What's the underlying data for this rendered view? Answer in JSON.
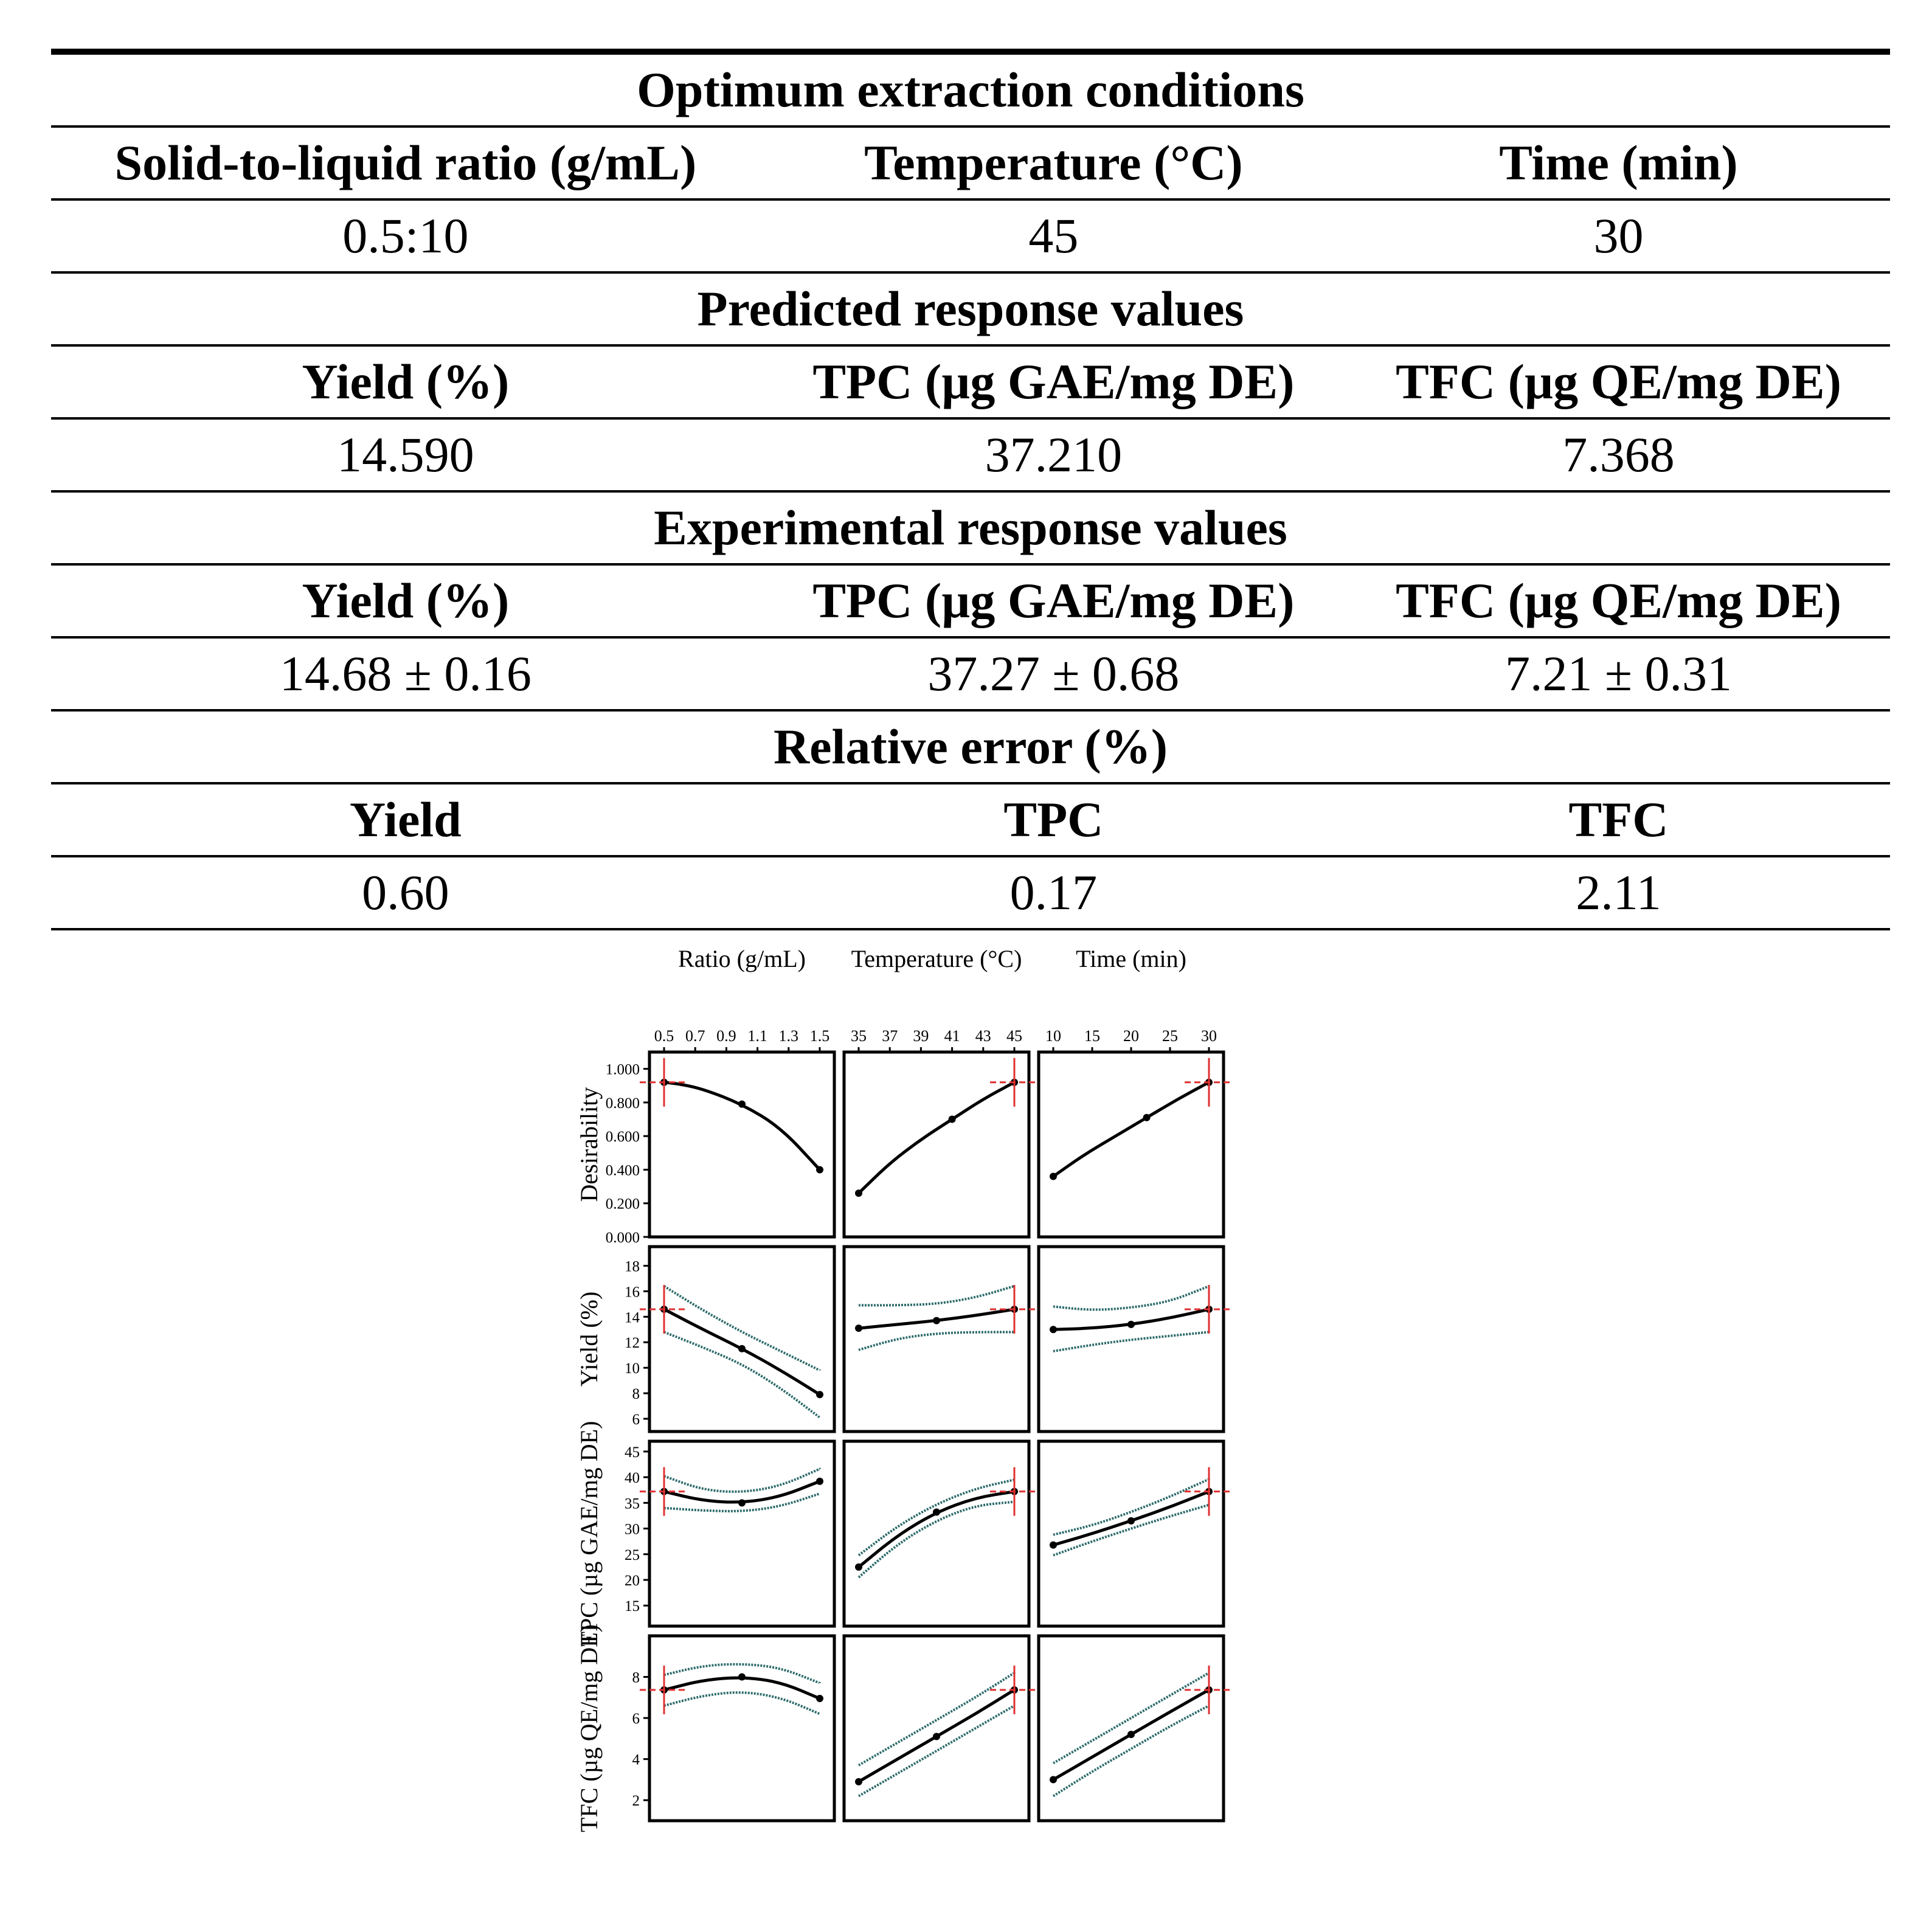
{
  "table": {
    "sections": [
      {
        "title": "Optimum extraction conditions",
        "headers": [
          "Solid-to-liquid ratio (g/mL)",
          "Temperature (°C)",
          "Time (min)"
        ],
        "values": [
          "0.5:10",
          "45",
          "30"
        ]
      },
      {
        "title": "Predicted response values",
        "headers": [
          "Yield (%)",
          "TPC (µg GAE/mg DE)",
          "TFC (µg QE/mg DE)"
        ],
        "values": [
          "14.590",
          "37.210",
          "7.368"
        ]
      },
      {
        "title": "Experimental response values",
        "headers": [
          "Yield (%)",
          "TPC (µg GAE/mg DE)",
          "TFC (µg QE/mg DE)"
        ],
        "values": [
          "14.68 ± 0.16",
          "37.27 ± 0.68",
          "7.21 ± 0.31"
        ]
      },
      {
        "title": "Relative error (%)",
        "headers": [
          "Yield",
          "TPC",
          "TFC"
        ],
        "values": [
          "0.60",
          "0.17",
          "2.11"
        ]
      }
    ]
  },
  "chart_data": {
    "type": "line",
    "columns": [
      {
        "label": "Ratio (g/mL)",
        "ticks": [
          "0.5",
          "0.7",
          "0.9",
          "1.1",
          "1.3",
          "1.5"
        ],
        "xlim": [
          0.5,
          1.5
        ],
        "optimum": 0.5
      },
      {
        "label": "Temperature (°C)",
        "ticks": [
          "35",
          "37",
          "39",
          "41",
          "43",
          "45"
        ],
        "xlim": [
          35,
          45
        ],
        "optimum": 45
      },
      {
        "label": "Time (min)",
        "ticks": [
          "10",
          "15",
          "20",
          "25",
          "30"
        ],
        "xlim": [
          10,
          30
        ],
        "optimum": 30
      }
    ],
    "rows": [
      {
        "label": "Desirability",
        "ticks": [
          "1.000",
          "0.800",
          "0.600",
          "0.400",
          "0.200",
          "0.000"
        ],
        "ylim": [
          0,
          1.1
        ],
        "optimum_y": 0.92,
        "has_ci": false,
        "curves": [
          {
            "x": [
              0.5,
              0.6,
              0.75,
              1.0,
              1.25,
              1.5
            ],
            "y": [
              0.92,
              0.91,
              0.88,
              0.79,
              0.65,
              0.4
            ]
          },
          {
            "x": [
              35,
              37,
              39,
              41,
              43,
              45
            ],
            "y": [
              0.26,
              0.44,
              0.58,
              0.7,
              0.82,
              0.92
            ]
          },
          {
            "x": [
              10,
              14,
              18,
              22,
              26,
              30
            ],
            "y": [
              0.36,
              0.49,
              0.6,
              0.71,
              0.82,
              0.92
            ]
          }
        ]
      },
      {
        "label": "Yield (%)",
        "ticks": [
          "18",
          "16",
          "14",
          "12",
          "10",
          "8",
          "6"
        ],
        "ylim": [
          5,
          19.5
        ],
        "optimum_y": 14.59,
        "has_ci": true,
        "curves": [
          {
            "x": [
              0.5,
              0.75,
              1.0,
              1.25,
              1.5
            ],
            "y": [
              14.59,
              13.0,
              11.5,
              9.8,
              7.9
            ],
            "lo": [
              12.8,
              11.6,
              10.3,
              8.4,
              6.1
            ],
            "hi": [
              16.4,
              14.5,
              12.8,
              11.3,
              9.8
            ]
          },
          {
            "x": [
              35,
              37.5,
              40,
              42.5,
              45
            ],
            "y": [
              13.1,
              13.4,
              13.7,
              14.1,
              14.59
            ],
            "lo": [
              11.4,
              12.3,
              12.7,
              12.8,
              12.8
            ],
            "hi": [
              14.9,
              14.9,
              15.0,
              15.5,
              16.4
            ]
          },
          {
            "x": [
              10,
              15,
              20,
              25,
              30
            ],
            "y": [
              13.0,
              13.1,
              13.4,
              13.9,
              14.59
            ],
            "lo": [
              11.3,
              11.8,
              12.2,
              12.5,
              12.8
            ],
            "hi": [
              14.8,
              14.5,
              14.7,
              15.2,
              16.4
            ]
          }
        ]
      },
      {
        "label": "TPC (µg GAE/mg DE)",
        "ticks": [
          "45",
          "40",
          "35",
          "30",
          "25",
          "20",
          "15"
        ],
        "ylim": [
          11,
          47
        ],
        "optimum_y": 37.21,
        "has_ci": true,
        "curves": [
          {
            "x": [
              0.5,
              0.75,
              1.0,
              1.25,
              1.5
            ],
            "y": [
              37.21,
              35.4,
              35.0,
              36.2,
              39.2
            ],
            "lo": [
              34.0,
              33.5,
              33.3,
              34.3,
              36.8
            ],
            "hi": [
              40.2,
              37.5,
              37.0,
              38.3,
              41.6
            ]
          },
          {
            "x": [
              35,
              37.5,
              40,
              42.5,
              45
            ],
            "y": [
              22.5,
              28.7,
              33.2,
              36.0,
              37.21
            ],
            "lo": [
              20.5,
              27.0,
              31.6,
              34.5,
              35.2
            ],
            "hi": [
              24.8,
              30.5,
              34.8,
              37.8,
              39.5
            ]
          },
          {
            "x": [
              10,
              15,
              20,
              25,
              30
            ],
            "y": [
              26.8,
              29.0,
              31.5,
              34.2,
              37.21
            ],
            "lo": [
              24.8,
              27.5,
              30.0,
              32.4,
              34.6
            ],
            "hi": [
              28.8,
              30.6,
              33.2,
              36.2,
              39.6
            ]
          }
        ]
      },
      {
        "label": "TFC (µg QE/mg DE)",
        "ticks": [
          "8",
          "6",
          "4",
          "2"
        ],
        "ylim": [
          1,
          10
        ],
        "optimum_y": 7.368,
        "has_ci": true,
        "curves": [
          {
            "x": [
              0.5,
              0.75,
              1.0,
              1.25,
              1.5
            ],
            "y": [
              7.368,
              7.85,
              8.0,
              7.75,
              6.95
            ],
            "lo": [
              6.6,
              7.1,
              7.3,
              7.0,
              6.2
            ],
            "hi": [
              8.1,
              8.55,
              8.65,
              8.45,
              7.7
            ]
          },
          {
            "x": [
              35,
              37.5,
              40,
              42.5,
              45
            ],
            "y": [
              2.9,
              4.0,
              5.1,
              6.2,
              7.368
            ],
            "lo": [
              2.2,
              3.3,
              4.4,
              5.5,
              6.6
            ],
            "hi": [
              3.7,
              4.8,
              5.9,
              7.0,
              8.2
            ]
          },
          {
            "x": [
              10,
              15,
              20,
              25,
              30
            ],
            "y": [
              3.0,
              4.1,
              5.2,
              6.3,
              7.368
            ],
            "lo": [
              2.2,
              3.4,
              4.5,
              5.6,
              6.6
            ],
            "hi": [
              3.8,
              4.9,
              6.0,
              7.1,
              8.2
            ]
          }
        ]
      }
    ]
  }
}
